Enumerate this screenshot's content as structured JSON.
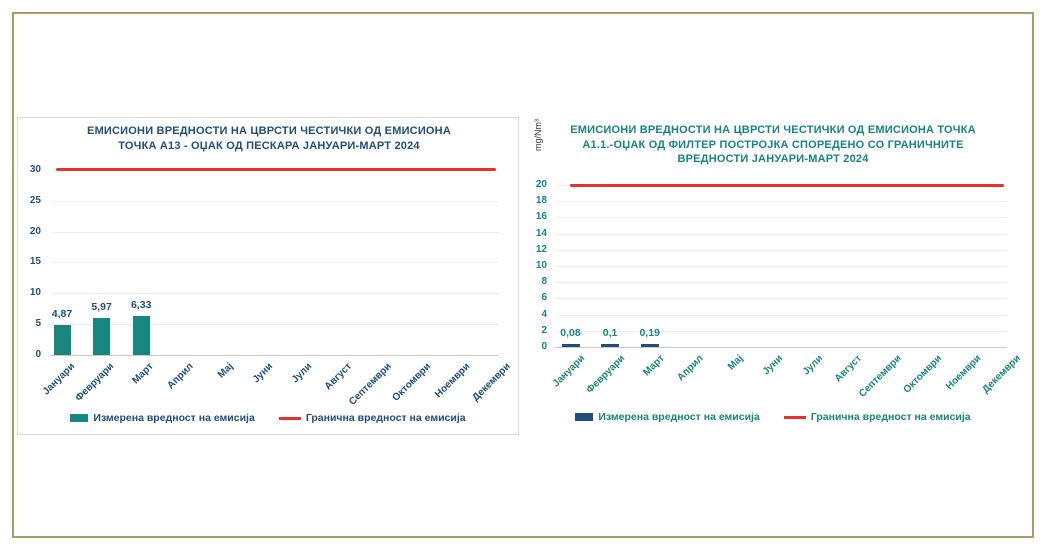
{
  "page": {
    "background": "#FFFFFF",
    "frame_border_color": "#AB9B66"
  },
  "chart_data": [
    {
      "type": "bar",
      "title": "ЕМИСИОНИ ВРЕДНОСТИ НА ЦВРСТИ ЧЕСТИЧКИ ОД ЕМИСИОНА ТОЧКА А13 - ОЏАК ОД ПЕСКАРА ЈАНУАРИ-МАРТ 2024",
      "title_lines": [
        "ЕМИСИОНИ ВРЕДНОСТИ НА ЦВРСТИ ЧЕСТИЧКИ ОД ЕМИСИОНА",
        "ТОЧКА А13 - ОЏАК ОД ПЕСКАРА ЈАНУАРИ-МАРТ 2024"
      ],
      "ylabel": "",
      "xlabel": "",
      "categories": [
        "Јануари",
        "Февруари",
        "Март",
        "Април",
        "Мај",
        "Јуни",
        "Јули",
        "Август",
        "Септември",
        "Октомври",
        "Ноември",
        "Декември"
      ],
      "series": [
        {
          "name": "Измерена вредност на емисија",
          "values": [
            4.87,
            5.97,
            6.33,
            null,
            null,
            null,
            null,
            null,
            null,
            null,
            null,
            null
          ],
          "value_labels": [
            "4,87",
            "5,97",
            "6,33",
            "",
            "",
            "",
            "",
            "",
            "",
            "",
            "",
            ""
          ]
        }
      ],
      "limit": {
        "name": "Гранична вредност на емисија",
        "value": 30
      },
      "ylim": [
        0,
        30
      ],
      "ytick_step": 5,
      "ytick_labels": [
        "0",
        "5",
        "10",
        "15",
        "20",
        "25",
        "30"
      ],
      "grid": true,
      "legend_position": "bottom",
      "colors": {
        "bar": "#17867E",
        "limit_line": "#E5322E",
        "title_text": "#1F4E79",
        "axis_text": "#1F4E79",
        "value_label_text": "#1F4E79",
        "legend_text": "#1F4E79"
      }
    },
    {
      "type": "bar",
      "title": "ЕМИСИОНИ ВРЕДНОСТИ НА ЦВРСТИ ЧЕСТИЧКИ ОД ЕМИСИОНА ТОЧКА А1.1.-ОЏАК ОД ФИЛТЕР ПОСТРОЈКА СПОРЕДЕНО СО ГРАНИЧНИТЕ ВРЕДНОСТИ ЈАНУАРИ-МАРТ 2024",
      "title_lines": [
        "ЕМИСИОНИ ВРЕДНОСТИ НА ЦВРСТИ ЧЕСТИЧКИ ОД ЕМИСИОНА ТОЧКА",
        "А1.1.-ОЏАК ОД ФИЛТЕР ПОСТРОЈКА СПОРЕДЕНО СО ГРАНИЧНИТЕ",
        "ВРЕДНОСТИ ЈАНУАРИ-МАРТ 2024"
      ],
      "ylabel": "mg/Nm³",
      "xlabel": "",
      "categories": [
        "Јануари",
        "Февруари",
        "Март",
        "Април",
        "Мај",
        "Јуни",
        "Јули",
        "Август",
        "Септември",
        "Октомври",
        "Ноември",
        "Декември"
      ],
      "series": [
        {
          "name": "Измерена вредност на емисија",
          "values": [
            0.08,
            0.1,
            0.19,
            null,
            null,
            null,
            null,
            null,
            null,
            null,
            null,
            null
          ],
          "value_labels": [
            "0,08",
            "0,1",
            "0,19",
            "",
            "",
            "",
            "",
            "",
            "",
            "",
            "",
            ""
          ]
        }
      ],
      "limit": {
        "name": "Гранична вредност на емисија",
        "value": 20
      },
      "ylim": [
        0,
        20
      ],
      "ytick_step": 2,
      "ytick_labels": [
        "0",
        "2",
        "4",
        "6",
        "8",
        "10",
        "12",
        "14",
        "16",
        "18",
        "20"
      ],
      "grid": true,
      "legend_position": "bottom",
      "colors": {
        "bar": "#1F4E79",
        "limit_line": "#E5322E",
        "title_text": "#17867E",
        "axis_text": "#17867E",
        "value_label_text": "#17867E",
        "legend_text": "#17867E"
      }
    }
  ]
}
